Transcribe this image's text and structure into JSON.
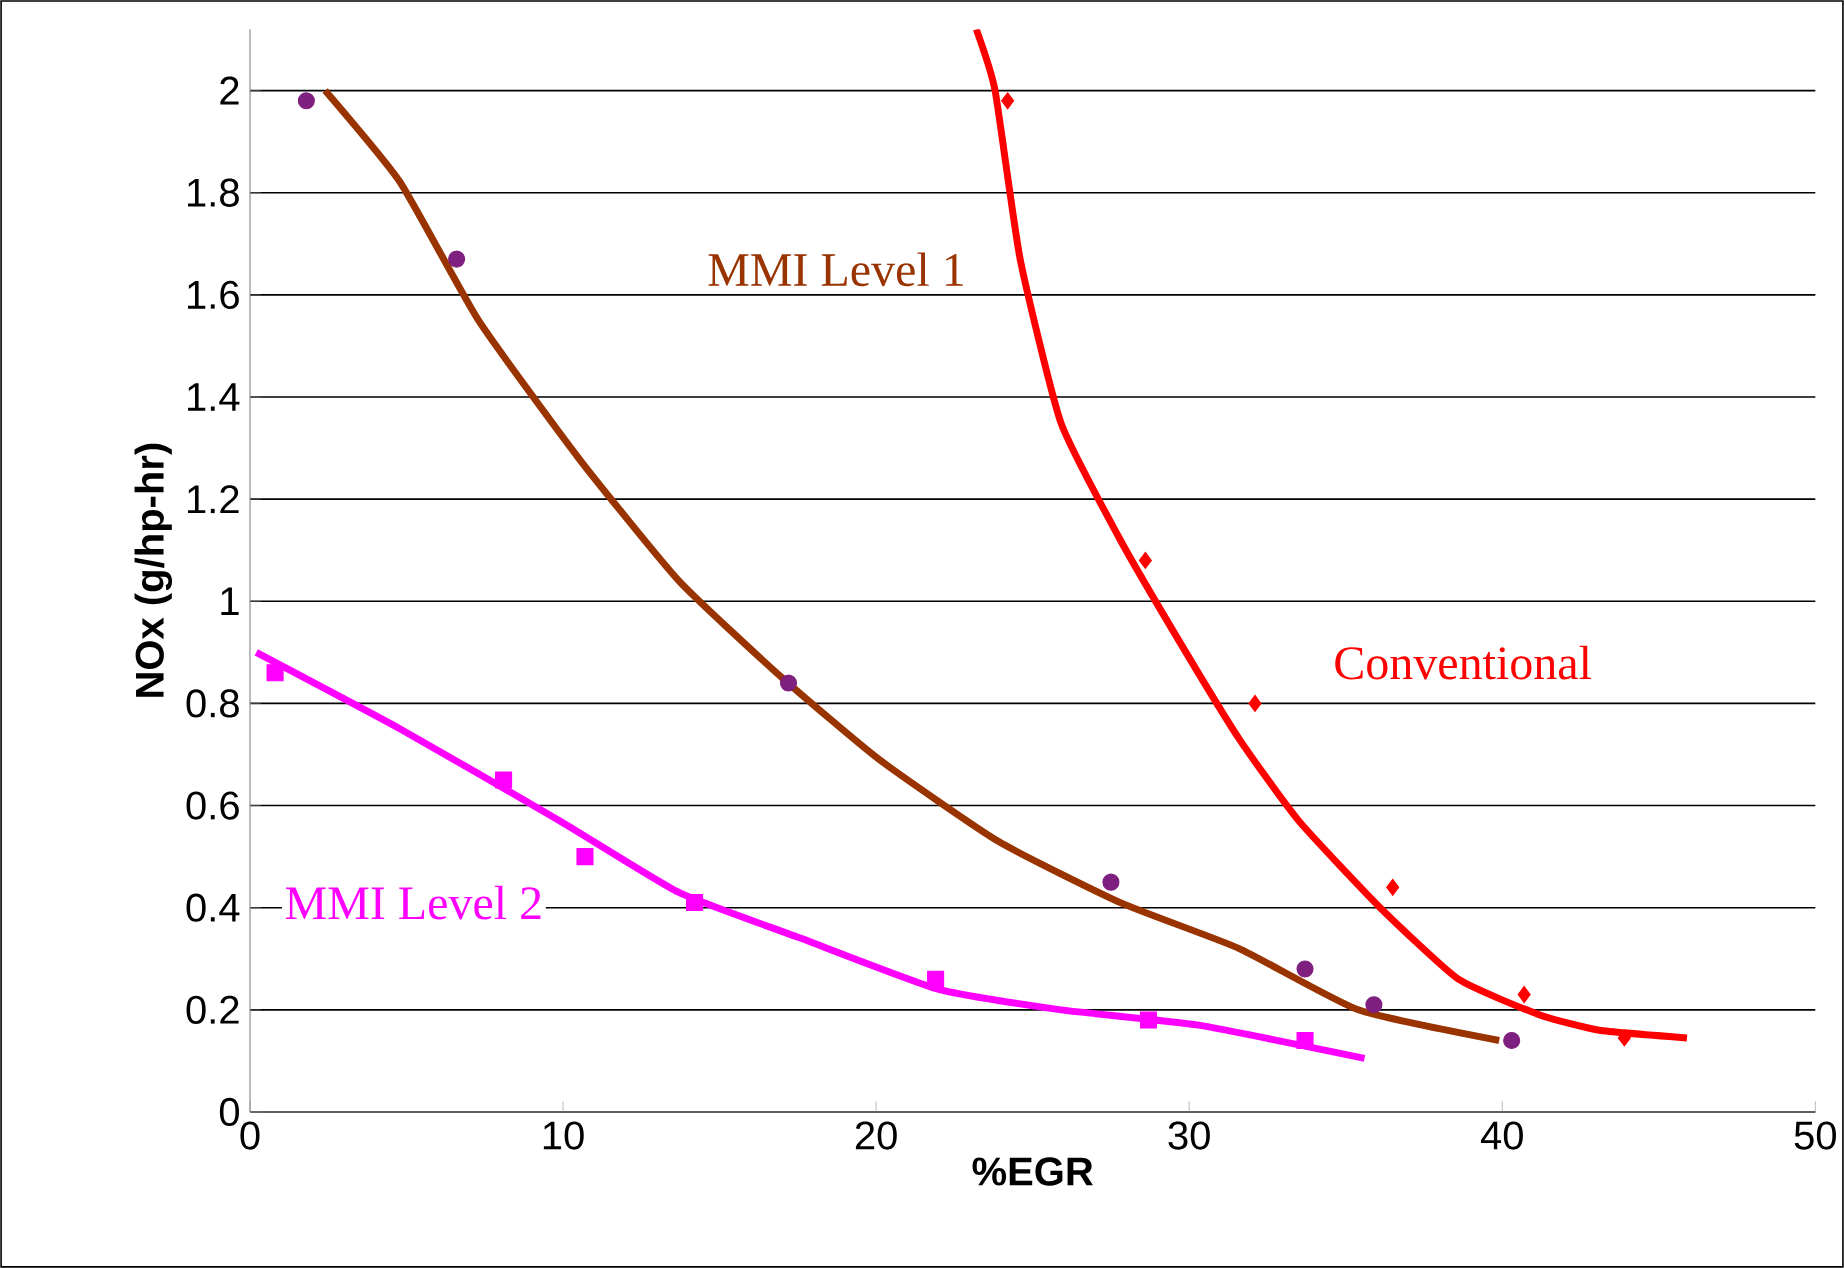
{
  "chart_data": {
    "type": "line",
    "xlabel": "%EGR",
    "ylabel": "NOx (g/hp-hr)",
    "xlim": [
      0,
      50
    ],
    "ylim": [
      0,
      2.12
    ],
    "xticks": [
      0,
      10,
      20,
      30,
      40,
      50
    ],
    "yticks": [
      0,
      0.2,
      0.4,
      0.6,
      0.8,
      1,
      1.2,
      1.4,
      1.6,
      1.8,
      2
    ],
    "grid": "y",
    "series": [
      {
        "type": "scatter",
        "marker": "circle",
        "color": "#7f1f7f",
        "x": [
          1.8,
          6.6,
          17.2,
          27.5,
          33.7,
          35.9,
          40.3
        ],
        "values": [
          1.98,
          1.67,
          0.84,
          0.45,
          0.28,
          0.21,
          0.14
        ]
      },
      {
        "name": "MMI Level 1",
        "color": "#993300",
        "x": [
          2.4,
          4.8,
          7.3,
          10.5,
          13.7,
          17.0,
          20.1,
          23.9,
          27.8,
          31.6,
          35.4,
          39.9
        ],
        "values": [
          2.0,
          1.82,
          1.55,
          1.28,
          1.04,
          0.85,
          0.69,
          0.53,
          0.41,
          0.32,
          0.2,
          0.14
        ]
      },
      {
        "type": "scatter",
        "marker": "diamond",
        "color": "#ff0000",
        "x": [
          24.2,
          28.6,
          32.1,
          36.5,
          40.7,
          43.9
        ],
        "values": [
          1.98,
          1.08,
          0.8,
          0.44,
          0.23,
          0.145
        ]
      },
      {
        "name": "Conventional",
        "color": "#ff0000",
        "x": [
          23.2,
          23.8,
          24.6,
          25.9,
          27.8,
          29.7,
          31.6,
          33.5,
          36.1,
          38.6,
          41.2,
          43.1,
          45.9
        ],
        "values": [
          2.12,
          2.0,
          1.67,
          1.35,
          1.12,
          0.92,
          0.73,
          0.57,
          0.4,
          0.26,
          0.19,
          0.16,
          0.145
        ]
      },
      {
        "type": "scatter",
        "marker": "square",
        "color": "#ff00ff",
        "x": [
          0.8,
          8.1,
          10.7,
          14.2,
          21.9,
          28.7,
          33.7
        ],
        "values": [
          0.86,
          0.65,
          0.5,
          0.41,
          0.26,
          0.18,
          0.14
        ]
      },
      {
        "name": "MMI Level 2",
        "color": "#ff00ff",
        "x": [
          0.2,
          4.8,
          9.9,
          13.7,
          17.6,
          22.0,
          25.9,
          30.3,
          35.6
        ],
        "values": [
          0.9,
          0.75,
          0.57,
          0.43,
          0.34,
          0.24,
          0.2,
          0.17,
          0.105
        ]
      }
    ]
  }
}
